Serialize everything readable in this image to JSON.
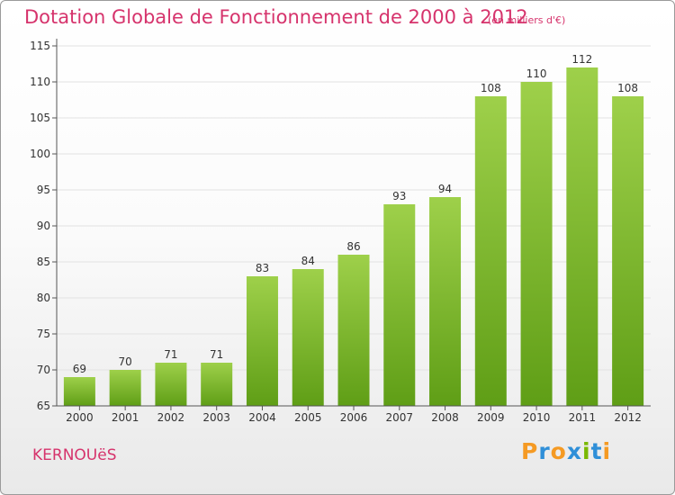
{
  "title": "Dotation Globale de Fonctionnement de 2000 à 2012",
  "subtitle": "(en milliers d'€)",
  "commune": "KERNOUëS",
  "logo": {
    "text": "Proxiti",
    "letters": [
      {
        "ch": "P",
        "color": "#f59a23"
      },
      {
        "ch": "r",
        "color": "#2f8fd8"
      },
      {
        "ch": "o",
        "color": "#f59a23"
      },
      {
        "ch": "x",
        "color": "#2f8fd8"
      },
      {
        "ch": "i",
        "color": "#7ab800"
      },
      {
        "ch": "t",
        "color": "#2f8fd8"
      },
      {
        "ch": "i",
        "color": "#f59a23"
      }
    ]
  },
  "colors": {
    "accent": "#d6336c",
    "bar_top": "#9ed04a",
    "bar_bottom": "#5f9e16",
    "axis": "#555555",
    "grid": "#e2e2e2"
  },
  "chart_data": {
    "type": "bar",
    "title": "Dotation Globale de Fonctionnement de 2000 à 2012",
    "subtitle": "(en milliers d'€)",
    "categories": [
      "2000",
      "2001",
      "2002",
      "2003",
      "2004",
      "2005",
      "2006",
      "2007",
      "2008",
      "2009",
      "2010",
      "2011",
      "2012"
    ],
    "values": [
      69,
      70,
      71,
      71,
      83,
      84,
      86,
      93,
      94,
      108,
      110,
      112,
      108
    ],
    "ylim": [
      65,
      115
    ],
    "yticks": [
      65,
      70,
      75,
      80,
      85,
      90,
      95,
      100,
      105,
      110,
      115
    ],
    "grid": true,
    "data_labels": true
  }
}
